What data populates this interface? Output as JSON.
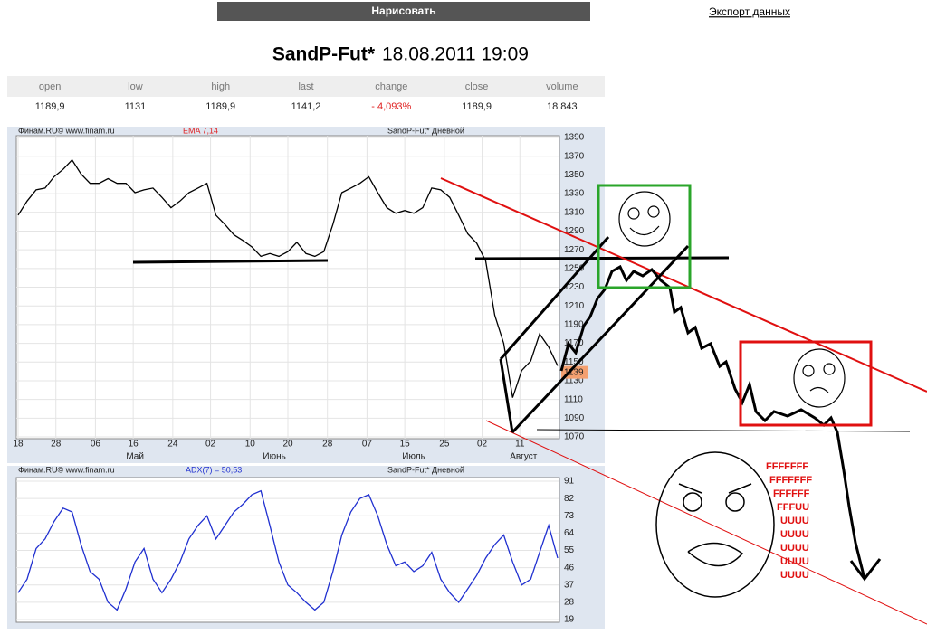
{
  "header": {
    "button": "Нарисовать",
    "export": "Экспорт данных",
    "title": "SandP-Fut*",
    "datetime": "18.08.2011 19:09"
  },
  "table": {
    "columns": [
      "open",
      "low",
      "high",
      "last",
      "change",
      "close",
      "volume"
    ],
    "row": [
      "1189,9",
      "1131",
      "1189,9",
      "1141,2",
      "- 4,093%",
      "1189,9",
      "18 843"
    ]
  },
  "chart_data": [
    {
      "type": "line",
      "source": "Финам.RU©  www.finam.ru",
      "indicator": "EMA 7,14",
      "title": "SandP-Fut* Дневной",
      "color": "#000000",
      "indicator_color": "#e02020",
      "grid": true,
      "last_price": 1139,
      "values": [
        1307,
        1322,
        1334,
        1336,
        1348,
        1356,
        1366,
        1351,
        1341,
        1341,
        1346,
        1341,
        1341,
        1331,
        1334,
        1336,
        1326,
        1315,
        1322,
        1331,
        1336,
        1341,
        1307,
        1297,
        1286,
        1280,
        1273,
        1263,
        1266,
        1263,
        1268,
        1278,
        1266,
        1263,
        1268,
        1297,
        1331,
        1336,
        1341,
        1348,
        1331,
        1315,
        1309,
        1312,
        1309,
        1315,
        1336,
        1334,
        1326,
        1307,
        1287,
        1277,
        1258,
        1200,
        1170,
        1112,
        1141,
        1151,
        1180,
        1166,
        1146
      ],
      "xlim": [
        0,
        60
      ],
      "xticks": [
        {
          "value": 0,
          "label": "18"
        },
        {
          "value": 4.2,
          "label": "28"
        },
        {
          "value": 8.6,
          "label": "06"
        },
        {
          "value": 12.8,
          "label": "16"
        },
        {
          "value": 17.2,
          "label": "24"
        },
        {
          "value": 21.4,
          "label": "02"
        },
        {
          "value": 25.8,
          "label": "10"
        },
        {
          "value": 30,
          "label": "20"
        },
        {
          "value": 34.4,
          "label": "28"
        },
        {
          "value": 38.8,
          "label": "07"
        },
        {
          "value": 43,
          "label": "15"
        },
        {
          "value": 47.4,
          "label": "25"
        },
        {
          "value": 51.6,
          "label": "02"
        },
        {
          "value": 55.8,
          "label": "11"
        }
      ],
      "xgroups": [
        {
          "value": 13,
          "label": "Май"
        },
        {
          "value": 28.5,
          "label": "Июнь"
        },
        {
          "value": 44,
          "label": "Июль"
        },
        {
          "value": 56.2,
          "label": "Август"
        }
      ],
      "ylim": [
        1070,
        1390
      ],
      "yticks": [
        1390,
        1370,
        1350,
        1330,
        1310,
        1290,
        1270,
        1250,
        1230,
        1210,
        1190,
        1170,
        1150,
        1130,
        1110,
        1090,
        1070
      ]
    },
    {
      "type": "line",
      "source": "Финам.RU©  www.finam.ru",
      "indicator": "ADX(7) = 50,53",
      "title": "SandP-Fut* Дневной",
      "color": "#2030d0",
      "indicator_color": "#2030d0",
      "grid": true,
      "values": [
        33,
        40,
        56,
        61,
        70,
        77,
        75,
        58,
        44,
        40,
        28,
        24,
        35,
        49,
        56,
        40,
        33,
        40,
        49,
        61,
        68,
        73,
        61,
        68,
        75,
        79,
        84,
        86,
        68,
        49,
        37,
        33,
        28,
        24,
        28,
        44,
        63,
        75,
        82,
        84,
        73,
        58,
        47,
        49,
        44,
        47,
        54,
        40,
        33,
        28,
        35,
        42,
        51,
        58,
        63,
        49,
        37,
        40,
        54,
        68,
        51
      ],
      "xlim": [
        0,
        60
      ],
      "ylim": [
        19,
        91
      ],
      "yticks": [
        91,
        82,
        73,
        64,
        55,
        46,
        37,
        28,
        19
      ]
    }
  ],
  "meme": {
    "rage_text": [
      "FFFFFFF",
      "FFFFFFF",
      "FFFFFF",
      "FFFUU",
      "UUUU",
      "UUUU",
      "UUUU",
      "UUUU",
      "UUUU"
    ]
  }
}
